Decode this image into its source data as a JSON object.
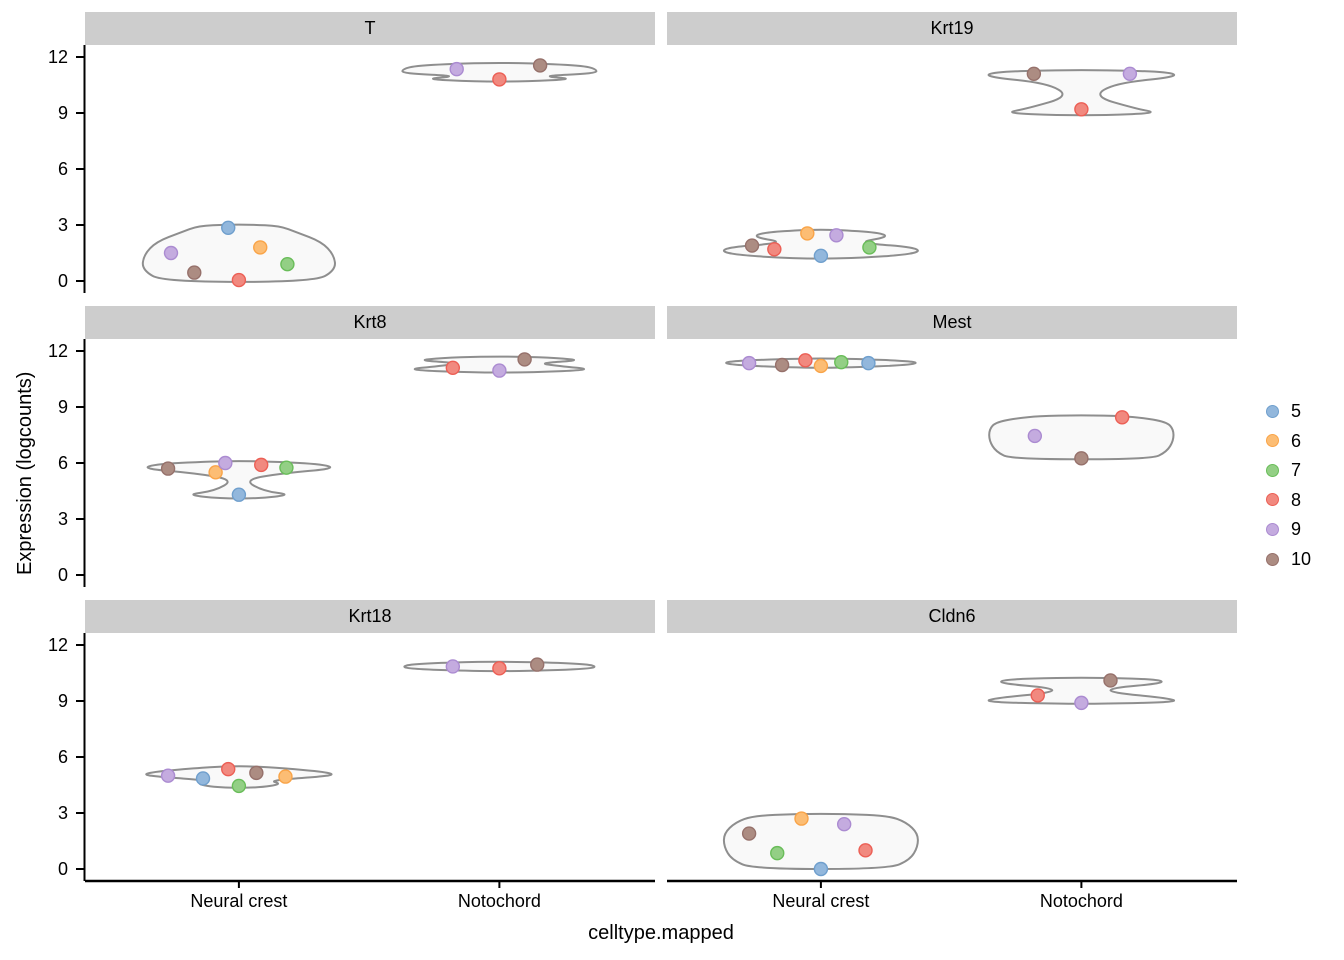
{
  "axes": {
    "x_title": "celltype.mapped",
    "y_title": "Expression (logcounts)",
    "x_categories": [
      "Neural crest",
      "Notochord"
    ],
    "y_ticks": [
      0,
      3,
      6,
      9,
      12
    ],
    "y_range": [
      -0.6,
      12.6
    ]
  },
  "legend": {
    "position": "right",
    "entries": [
      {
        "label": "5",
        "fill": "#92b7dc",
        "stroke": "#6f9fcd"
      },
      {
        "label": "6",
        "fill": "#fcbd74",
        "stroke": "#f9a448"
      },
      {
        "label": "7",
        "fill": "#93cf85",
        "stroke": "#69bd59"
      },
      {
        "label": "8",
        "fill": "#f1897f",
        "stroke": "#ec5f55"
      },
      {
        "label": "9",
        "fill": "#c4abdf",
        "stroke": "#ab8bd1"
      },
      {
        "label": "10",
        "fill": "#ac8c82",
        "stroke": "#96716b"
      }
    ]
  },
  "style": {
    "strip_bg": "#cdcdcd",
    "violin_fill": "#f9f9f9",
    "violin_stroke": "#8e8e8e",
    "axis_color": "#000000",
    "grid": "off"
  },
  "chart_data": {
    "type": "violin",
    "overlay": "jittered points colored by cluster",
    "facet_layout": {
      "rows": 3,
      "cols": 2
    },
    "facets": [
      {
        "title": "T",
        "groups": [
          {
            "category": "Neural crest",
            "points": [
              {
                "cluster": "5",
                "expression": 2.85,
                "jitter": -0.11
              },
              {
                "cluster": "6",
                "expression": 1.8,
                "jitter": 0.22
              },
              {
                "cluster": "7",
                "expression": 0.9,
                "jitter": 0.5
              },
              {
                "cluster": "8",
                "expression": 0.05,
                "jitter": 0.0
              },
              {
                "cluster": "9",
                "expression": 1.5,
                "jitter": -0.7
              },
              {
                "cluster": "10",
                "expression": 0.45,
                "jitter": -0.46
              }
            ],
            "violin_outline": [
              [
                -0.05,
                0.78
              ],
              [
                0.6,
                1.0
              ],
              [
                1.4,
                0.98
              ],
              [
                2.1,
                0.85
              ],
              [
                2.6,
                0.6
              ],
              [
                2.95,
                0.42
              ],
              [
                3.02,
                0.12
              ]
            ]
          },
          {
            "category": "Notochord",
            "points": [
              {
                "cluster": "8",
                "expression": 10.8,
                "jitter": 0.0
              },
              {
                "cluster": "9",
                "expression": 11.35,
                "jitter": -0.44
              },
              {
                "cluster": "10",
                "expression": 11.55,
                "jitter": 0.42
              }
            ],
            "violin_outline": [
              [
                10.68,
                0.25
              ],
              [
                10.82,
                0.8
              ],
              [
                10.98,
                0.4
              ],
              [
                11.12,
                1.0
              ],
              [
                11.35,
                1.0
              ],
              [
                11.55,
                0.85
              ],
              [
                11.68,
                0.25
              ]
            ]
          }
        ]
      },
      {
        "title": "Krt19",
        "groups": [
          {
            "category": "Neural crest",
            "points": [
              {
                "cluster": "5",
                "expression": 1.35,
                "jitter": 0.0
              },
              {
                "cluster": "6",
                "expression": 2.55,
                "jitter": -0.14
              },
              {
                "cluster": "7",
                "expression": 1.8,
                "jitter": 0.5
              },
              {
                "cluster": "8",
                "expression": 1.7,
                "jitter": -0.48
              },
              {
                "cluster": "9",
                "expression": 2.45,
                "jitter": 0.16
              },
              {
                "cluster": "10",
                "expression": 1.9,
                "jitter": -0.71
              }
            ],
            "violin_outline": [
              [
                1.2,
                0.3
              ],
              [
                1.45,
                1.0
              ],
              [
                1.8,
                1.0
              ],
              [
                2.05,
                0.35
              ],
              [
                2.35,
                0.7
              ],
              [
                2.6,
                0.6
              ],
              [
                2.75,
                0.15
              ]
            ]
          },
          {
            "category": "Notochord",
            "points": [
              {
                "cluster": "8",
                "expression": 9.2,
                "jitter": 0.0
              },
              {
                "cluster": "9",
                "expression": 11.1,
                "jitter": 0.5
              },
              {
                "cluster": "10",
                "expression": 11.1,
                "jitter": -0.49
              }
            ],
            "violin_outline": [
              [
                8.88,
                0.25
              ],
              [
                9.0,
                0.8
              ],
              [
                9.25,
                0.55
              ],
              [
                9.9,
                0.12
              ],
              [
                10.6,
                0.35
              ],
              [
                10.95,
                1.0
              ],
              [
                11.2,
                0.9
              ],
              [
                11.3,
                0.25
              ]
            ]
          }
        ]
      },
      {
        "title": "Krt8",
        "groups": [
          {
            "category": "Neural crest",
            "points": [
              {
                "cluster": "5",
                "expression": 4.3,
                "jitter": 0.0
              },
              {
                "cluster": "6",
                "expression": 5.5,
                "jitter": -0.24
              },
              {
                "cluster": "7",
                "expression": 5.75,
                "jitter": 0.49
              },
              {
                "cluster": "8",
                "expression": 5.9,
                "jitter": 0.23
              },
              {
                "cluster": "9",
                "expression": 6.0,
                "jitter": -0.14
              },
              {
                "cluster": "10",
                "expression": 5.7,
                "jitter": -0.73
              }
            ],
            "violin_outline": [
              [
                4.1,
                0.2
              ],
              [
                4.3,
                0.55
              ],
              [
                4.5,
                0.25
              ],
              [
                5.1,
                0.05
              ],
              [
                5.45,
                0.45
              ],
              [
                5.7,
                1.0
              ],
              [
                5.95,
                0.85
              ],
              [
                6.1,
                0.2
              ]
            ]
          },
          {
            "category": "Notochord",
            "points": [
              {
                "cluster": "8",
                "expression": 11.1,
                "jitter": -0.48
              },
              {
                "cluster": "9",
                "expression": 10.95,
                "jitter": 0.0
              },
              {
                "cluster": "10",
                "expression": 11.55,
                "jitter": 0.26
              }
            ],
            "violin_outline": [
              [
                10.85,
                0.3
              ],
              [
                11.0,
                1.0
              ],
              [
                11.2,
                0.6
              ],
              [
                11.35,
                0.4
              ],
              [
                11.5,
                0.85
              ],
              [
                11.62,
                0.6
              ],
              [
                11.7,
                0.2
              ]
            ]
          }
        ]
      },
      {
        "title": "Mest",
        "groups": [
          {
            "category": "Neural crest",
            "points": [
              {
                "cluster": "5",
                "expression": 11.35,
                "jitter": 0.49
              },
              {
                "cluster": "6",
                "expression": 11.2,
                "jitter": 0.0
              },
              {
                "cluster": "7",
                "expression": 11.4,
                "jitter": 0.21
              },
              {
                "cluster": "8",
                "expression": 11.5,
                "jitter": -0.16
              },
              {
                "cluster": "9",
                "expression": 11.35,
                "jitter": -0.74
              },
              {
                "cluster": "10",
                "expression": 11.25,
                "jitter": -0.4
              }
            ],
            "violin_outline": [
              [
                11.1,
                0.2
              ],
              [
                11.25,
                0.95
              ],
              [
                11.45,
                1.0
              ],
              [
                11.6,
                0.25
              ]
            ]
          },
          {
            "category": "Notochord",
            "points": [
              {
                "cluster": "8",
                "expression": 8.45,
                "jitter": 0.42
              },
              {
                "cluster": "9",
                "expression": 7.45,
                "jitter": -0.48
              },
              {
                "cluster": "10",
                "expression": 6.25,
                "jitter": 0.0
              }
            ],
            "violin_outline": [
              [
                6.2,
                0.72
              ],
              [
                6.6,
                0.88
              ],
              [
                7.2,
                0.95
              ],
              [
                7.8,
                0.95
              ],
              [
                8.2,
                0.88
              ],
              [
                8.45,
                0.6
              ],
              [
                8.55,
                0.25
              ]
            ]
          }
        ]
      },
      {
        "title": "Krt18",
        "groups": [
          {
            "category": "Neural crest",
            "points": [
              {
                "cluster": "5",
                "expression": 4.85,
                "jitter": -0.37
              },
              {
                "cluster": "6",
                "expression": 4.95,
                "jitter": 0.48
              },
              {
                "cluster": "7",
                "expression": 4.45,
                "jitter": 0.0
              },
              {
                "cluster": "8",
                "expression": 5.35,
                "jitter": -0.11
              },
              {
                "cluster": "9",
                "expression": 5.0,
                "jitter": -0.73
              },
              {
                "cluster": "10",
                "expression": 5.15,
                "jitter": 0.18
              }
            ],
            "violin_outline": [
              [
                4.35,
                0.2
              ],
              [
                4.55,
                0.45
              ],
              [
                4.75,
                0.3
              ],
              [
                5.0,
                1.0
              ],
              [
                5.2,
                0.9
              ],
              [
                5.4,
                0.45
              ],
              [
                5.5,
                0.15
              ]
            ]
          },
          {
            "category": "Notochord",
            "points": [
              {
                "cluster": "8",
                "expression": 10.75,
                "jitter": 0.0
              },
              {
                "cluster": "9",
                "expression": 10.85,
                "jitter": -0.48
              },
              {
                "cluster": "10",
                "expression": 10.95,
                "jitter": 0.39
              }
            ],
            "violin_outline": [
              [
                10.6,
                0.25
              ],
              [
                10.72,
                0.95
              ],
              [
                10.9,
                1.0
              ],
              [
                11.02,
                0.75
              ],
              [
                11.1,
                0.2
              ]
            ]
          }
        ]
      },
      {
        "title": "Cldn6",
        "groups": [
          {
            "category": "Neural crest",
            "points": [
              {
                "cluster": "5",
                "expression": 0.0,
                "jitter": 0.0
              },
              {
                "cluster": "6",
                "expression": 2.7,
                "jitter": -0.2
              },
              {
                "cluster": "7",
                "expression": 0.85,
                "jitter": -0.45
              },
              {
                "cluster": "8",
                "expression": 1.0,
                "jitter": 0.46
              },
              {
                "cluster": "9",
                "expression": 2.4,
                "jitter": 0.24
              },
              {
                "cluster": "10",
                "expression": 1.9,
                "jitter": -0.74
              }
            ],
            "violin_outline": [
              [
                0.0,
                0.7
              ],
              [
                0.5,
                0.92
              ],
              [
                1.2,
                1.0
              ],
              [
                1.9,
                1.0
              ],
              [
                2.5,
                0.88
              ],
              [
                2.85,
                0.7
              ],
              [
                2.95,
                0.25
              ]
            ]
          },
          {
            "category": "Notochord",
            "points": [
              {
                "cluster": "8",
                "expression": 9.3,
                "jitter": -0.45
              },
              {
                "cluster": "9",
                "expression": 8.9,
                "jitter": 0.0
              },
              {
                "cluster": "10",
                "expression": 10.1,
                "jitter": 0.3
              }
            ],
            "violin_outline": [
              [
                8.85,
                0.25
              ],
              [
                8.95,
                1.0
              ],
              [
                9.15,
                0.9
              ],
              [
                9.45,
                0.3
              ],
              [
                9.7,
                0.3
              ],
              [
                9.95,
                0.85
              ],
              [
                10.15,
                0.8
              ],
              [
                10.25,
                0.25
              ]
            ]
          }
        ]
      }
    ]
  }
}
